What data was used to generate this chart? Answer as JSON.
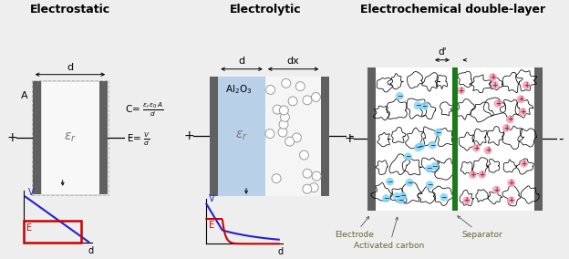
{
  "title1": "Electrostatic",
  "title2": "Electrolytic",
  "title3": "Electrochemical double-layer",
  "bg_color": "#eeeeee",
  "electrode_color": "#606060",
  "dielectric_color": "#f8f8f8",
  "al2o3_color": "#b8d0e8",
  "green_separator": "#1a7a1a",
  "cyan_ion_color": "#88d8f0",
  "pink_ion_color": "#f0a8b8",
  "blue_line": "#2222cc",
  "red_color": "#cc0000",
  "text_color": "#444444",
  "label_color": "#666633"
}
